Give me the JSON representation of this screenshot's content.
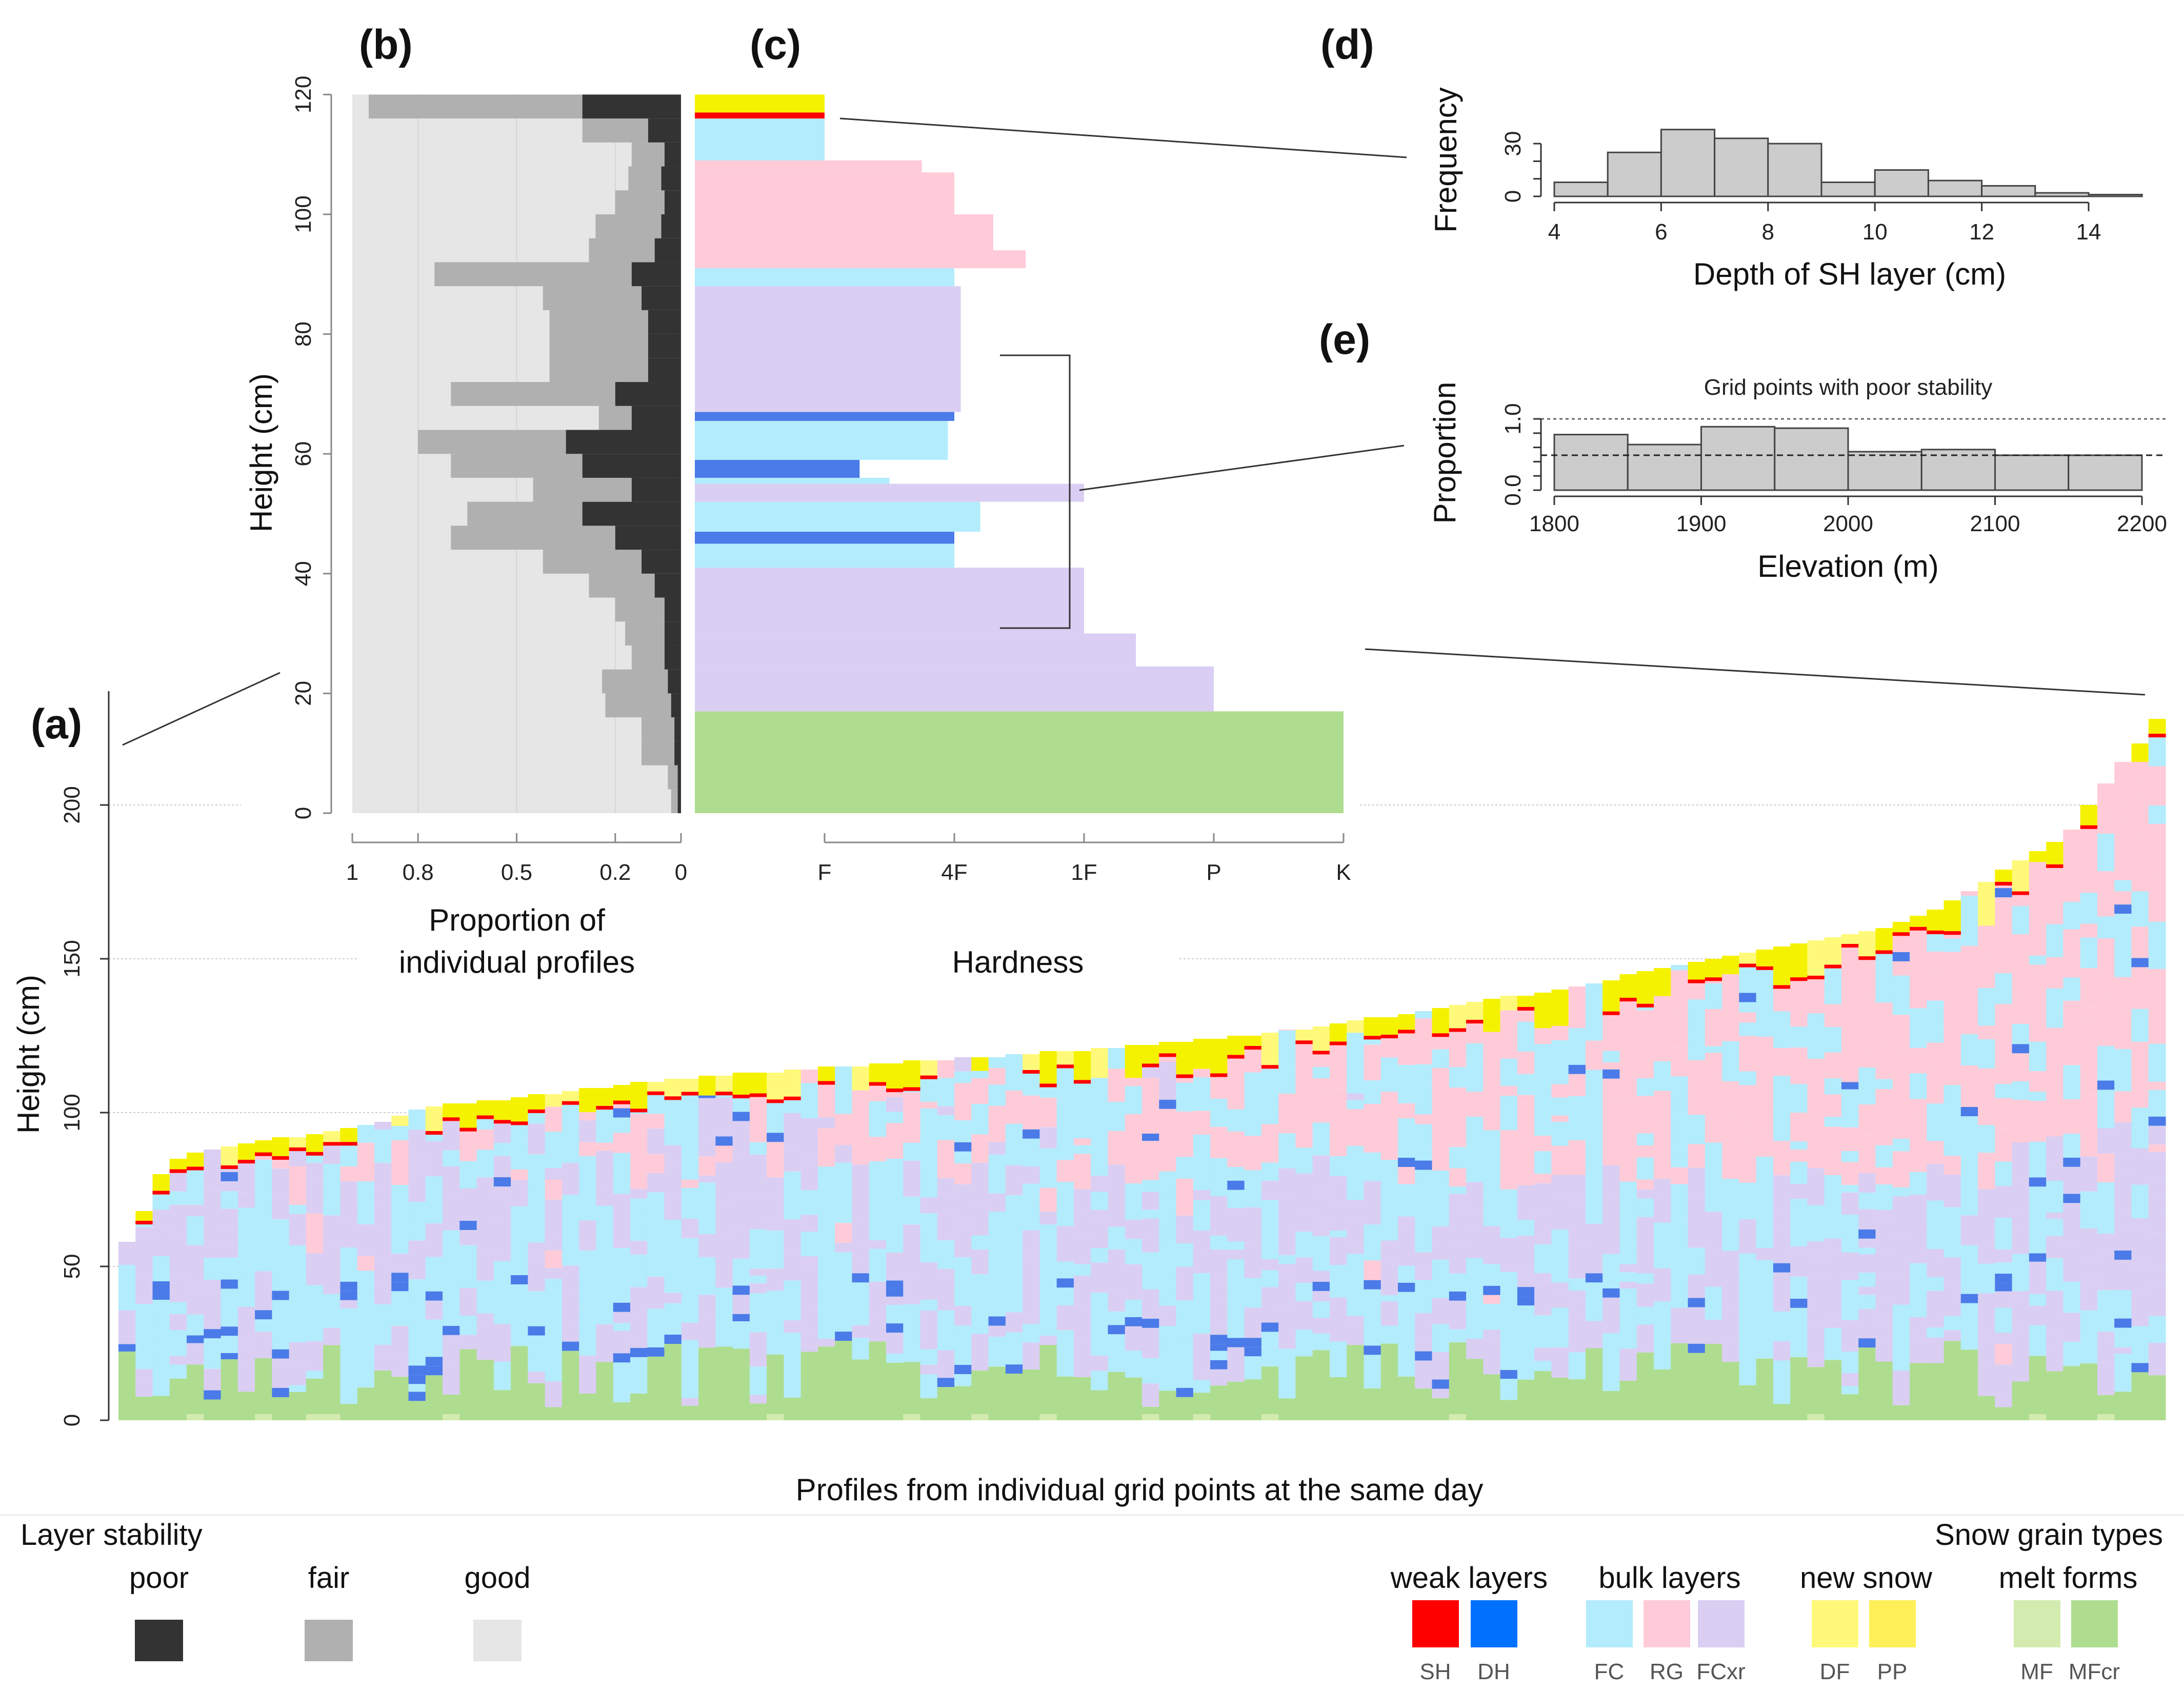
{
  "colors": {
    "SH": "#ff0000",
    "DH": "#4a7be8",
    "FC": "#b3ecfc",
    "RG": "#ffcbd8",
    "FCxr": "#dacef3",
    "DF": "#fff97a",
    "PP": "#f5f200",
    "MF": "#d4ebb0",
    "MFcr": "#aedd8f",
    "poor": "#333333",
    "fair": "#b0b0b0",
    "good": "#e6e6e6",
    "hist": "#cccccc"
  },
  "labels": {
    "a": "(a)",
    "b": "(b)",
    "c": "(c)",
    "d": "(d)",
    "e": "(e)"
  },
  "chart_data": [
    {
      "id": "a",
      "type": "bar",
      "ylabel": "Height (cm)",
      "xlabel": "Profiles from individual grid points at the same day",
      "yticks": [
        "0",
        "50",
        "100",
        "150",
        "200"
      ],
      "ylim": [
        0,
        237
      ],
      "grid": true,
      "profile_heights": [
        58,
        68,
        80,
        85,
        87,
        88,
        89,
        90,
        91,
        92,
        92,
        93,
        94,
        95,
        96,
        97,
        99,
        101,
        102,
        103,
        103,
        104,
        104,
        105,
        106,
        106,
        107,
        108,
        108,
        109,
        110,
        110,
        111,
        111,
        112,
        112,
        113,
        113,
        113,
        114,
        114,
        115,
        115,
        115,
        116,
        116,
        117,
        117,
        117,
        118,
        118,
        118,
        119,
        119,
        120,
        120,
        120,
        121,
        121,
        122,
        122,
        123,
        123,
        124,
        124,
        125,
        125,
        126,
        127,
        127,
        128,
        129,
        130,
        131,
        131,
        132,
        133,
        134,
        135,
        136,
        137,
        138,
        138,
        139,
        140,
        141,
        142,
        143,
        145,
        146,
        147,
        148,
        149,
        150,
        151,
        152,
        153,
        154,
        155,
        156,
        157,
        158,
        159,
        160,
        162,
        164,
        166,
        169,
        172,
        175,
        179,
        182,
        185,
        188,
        192,
        200,
        207,
        214,
        220,
        228
      ]
    },
    {
      "id": "b",
      "type": "area",
      "ylabel": "Height (cm)",
      "xlabel_lines": [
        "Proportion of",
        "individual profiles"
      ],
      "xticks": [
        "1",
        "0.8",
        "0.5",
        "0.2",
        "0"
      ],
      "xtick_values": [
        1,
        0.8,
        0.5,
        0.2,
        0
      ],
      "yticks": [
        "0",
        "20",
        "40",
        "60",
        "80",
        "100",
        "120"
      ],
      "ylim": [
        0,
        120
      ],
      "heights": [
        0,
        4,
        8,
        12,
        16,
        20,
        24,
        28,
        32,
        36,
        40,
        44,
        48,
        52,
        56,
        60,
        64,
        68,
        72,
        76,
        80,
        84,
        88,
        92,
        96,
        100,
        104,
        108,
        112,
        116,
        120
      ],
      "poor": [
        0.01,
        0.01,
        0.02,
        0.02,
        0.03,
        0.04,
        0.05,
        0.05,
        0.05,
        0.08,
        0.12,
        0.2,
        0.3,
        0.15,
        0.3,
        0.35,
        0.15,
        0.2,
        0.1,
        0.1,
        0.1,
        0.12,
        0.15,
        0.08,
        0.06,
        0.05,
        0.06,
        0.05,
        0.1,
        0.3,
        0.05
      ],
      "fair": [
        0.02,
        0.03,
        0.1,
        0.1,
        0.2,
        0.2,
        0.1,
        0.12,
        0.15,
        0.2,
        0.3,
        0.5,
        0.35,
        0.3,
        0.4,
        0.45,
        0.1,
        0.5,
        0.3,
        0.3,
        0.3,
        0.3,
        0.6,
        0.2,
        0.2,
        0.15,
        0.1,
        0.1,
        0.2,
        0.65,
        0.0
      ]
    },
    {
      "id": "c",
      "type": "bar",
      "xlabel": "Hardness",
      "xticks": [
        "F",
        "4F",
        "1F",
        "P",
        "K"
      ],
      "layers": [
        {
          "bottom": 0,
          "top": 17,
          "grain": "MFcr",
          "hardness": 5
        },
        {
          "bottom": 17,
          "top": 24.5,
          "grain": "FCxr",
          "hardness": 4
        },
        {
          "bottom": 24.5,
          "top": 30,
          "grain": "FCxr",
          "hardness": 3.4
        },
        {
          "bottom": 30,
          "top": 41,
          "grain": "FCxr",
          "hardness": 3
        },
        {
          "bottom": 41,
          "top": 45,
          "grain": "FC",
          "hardness": 2
        },
        {
          "bottom": 45,
          "top": 47,
          "grain": "DH",
          "hardness": 2
        },
        {
          "bottom": 47,
          "top": 52,
          "grain": "FC",
          "hardness": 2.2
        },
        {
          "bottom": 52,
          "top": 55,
          "grain": "FCxr",
          "hardness": 3
        },
        {
          "bottom": 55,
          "top": 56,
          "grain": "FC",
          "hardness": 1.5
        },
        {
          "bottom": 56,
          "top": 59,
          "grain": "DH",
          "hardness": 1.27
        },
        {
          "bottom": 59,
          "top": 65.5,
          "grain": "FC",
          "hardness": 1.95
        },
        {
          "bottom": 65.5,
          "top": 67,
          "grain": "DH",
          "hardness": 2
        },
        {
          "bottom": 67,
          "top": 88,
          "grain": "FCxr",
          "hardness": 2.05
        },
        {
          "bottom": 88,
          "top": 91,
          "grain": "FC",
          "hardness": 2
        },
        {
          "bottom": 91,
          "top": 94,
          "grain": "RG",
          "hardness": 2.55
        },
        {
          "bottom": 94,
          "top": 100,
          "grain": "RG",
          "hardness": 2.3
        },
        {
          "bottom": 100,
          "top": 107,
          "grain": "RG",
          "hardness": 2.0
        },
        {
          "bottom": 107,
          "top": 109,
          "grain": "RG",
          "hardness": 1.75
        },
        {
          "bottom": 109,
          "top": 116,
          "grain": "FC",
          "hardness": 1
        },
        {
          "bottom": 116,
          "top": 117,
          "grain": "SH",
          "hardness": 1
        },
        {
          "bottom": 117,
          "top": 120,
          "grain": "PP",
          "hardness": 1
        }
      ]
    },
    {
      "id": "d",
      "type": "bar",
      "xlabel": "Depth of SH layer (cm)",
      "ylabel": "Frequency",
      "xticks": [
        "4",
        "6",
        "8",
        "10",
        "12",
        "14"
      ],
      "yticks": [
        "0",
        "30"
      ],
      "bin_edges": [
        4,
        5,
        6,
        7,
        8,
        9,
        10,
        11,
        12,
        13,
        14,
        15
      ],
      "values": [
        8,
        25,
        38,
        33,
        30,
        8,
        15,
        9,
        6,
        2,
        1
      ]
    },
    {
      "id": "e",
      "type": "bar",
      "title": "Grid points with poor stability",
      "xlabel": "Elevation (m)",
      "ylabel": "Proportion",
      "xticks": [
        "1800",
        "1900",
        "2000",
        "2100",
        "2200"
      ],
      "yticks": [
        "0.0",
        "1.0"
      ],
      "bin_edges": [
        1800,
        1850,
        1900,
        1950,
        2000,
        2050,
        2100,
        2150,
        2200
      ],
      "values": [
        0.78,
        0.64,
        0.89,
        0.87,
        0.54,
        0.57,
        0.49,
        0.49
      ],
      "reference_lines": {
        "dotted": 1.0,
        "dashed": 0.49
      }
    }
  ],
  "legend": {
    "stability": {
      "title": "Layer stability",
      "items": [
        {
          "label": "poor",
          "key": "poor"
        },
        {
          "label": "fair",
          "key": "fair"
        },
        {
          "label": "good",
          "key": "good"
        }
      ]
    },
    "grains": {
      "title": "Snow grain types",
      "groups": [
        {
          "label": "weak layers",
          "items": [
            "SH",
            "DH"
          ]
        },
        {
          "label": "bulk layers",
          "items": [
            "FC",
            "RG",
            "FCxr"
          ]
        },
        {
          "label": "new snow",
          "items": [
            "DF",
            "PP"
          ]
        },
        {
          "label": "melt forms",
          "items": [
            "MF",
            "MFcr"
          ]
        }
      ]
    }
  }
}
